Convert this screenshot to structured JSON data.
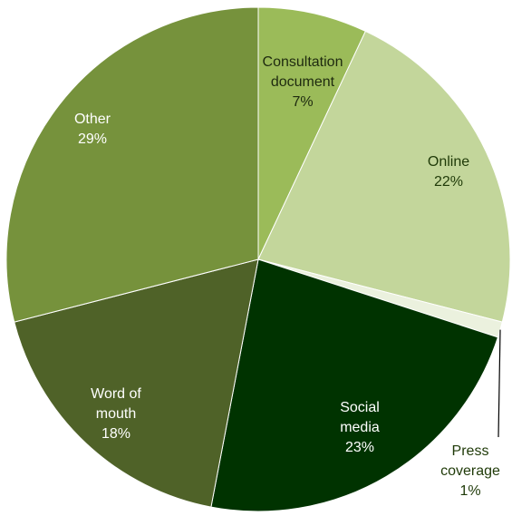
{
  "chart_data": {
    "type": "pie",
    "title": "",
    "slices": [
      {
        "label": "Consultation document",
        "label_lines": [
          "Consultation",
          "document"
        ],
        "percent_label": "7%",
        "value": 7,
        "color": "#9BBB59",
        "label_color": "#1e2a0f"
      },
      {
        "label": "Online",
        "label_lines": [
          "Online"
        ],
        "percent_label": "22%",
        "value": 22,
        "color": "#C3D69B",
        "label_color": "#1f3a08"
      },
      {
        "label": "Press coverage",
        "label_lines": [
          "Press",
          "coverage"
        ],
        "percent_label": "1%",
        "value": 1,
        "color": "#EBF1DE",
        "label_color": "#1f3a08"
      },
      {
        "label": "Social media",
        "label_lines": [
          "Social",
          "media"
        ],
        "percent_label": "23%",
        "value": 23,
        "color": "#003300",
        "label_color": "#ffffff"
      },
      {
        "label": "Word of mouth",
        "label_lines": [
          "Word of",
          "mouth"
        ],
        "percent_label": "18%",
        "value": 18,
        "color": "#4F6228",
        "label_color": "#ffffff"
      },
      {
        "label": "Other",
        "label_lines": [
          "Other"
        ],
        "percent_label": "29%",
        "value": 29,
        "color": "#76923C",
        "label_color": "#ffffff"
      }
    ],
    "legend": "none"
  }
}
